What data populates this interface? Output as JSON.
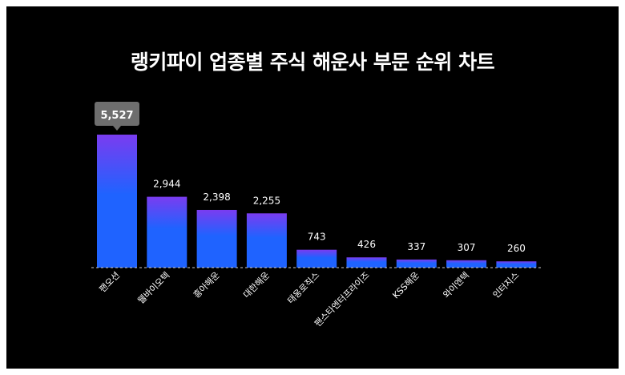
{
  "chart_data": {
    "type": "bar",
    "title": "랭키파이 업종별 주식 해운사 부문 순위 차트",
    "categories": [
      "팬오션",
      "웰바이오텍",
      "흥아해운",
      "대한해운",
      "태웅로직스",
      "팬스타엔터프라이즈",
      "KSS해운",
      "와이엔텍",
      "인터지스"
    ],
    "values": [
      5527,
      2944,
      2398,
      2255,
      743,
      426,
      337,
      307,
      260
    ],
    "value_labels": [
      "5,527",
      "2,944",
      "2,398",
      "2,255",
      "743",
      "426",
      "337",
      "307",
      "260"
    ],
    "highlight_index": 0,
    "ylim": [
      0,
      5527
    ],
    "grid": false,
    "legend": "none",
    "colors": {
      "background": "#000000",
      "bar_top": "#7a3cf0",
      "bar_bottom": "#1f63ff",
      "text": "#ffffff",
      "callout": "#6e6e6e",
      "baseline": "#cccccc"
    }
  }
}
